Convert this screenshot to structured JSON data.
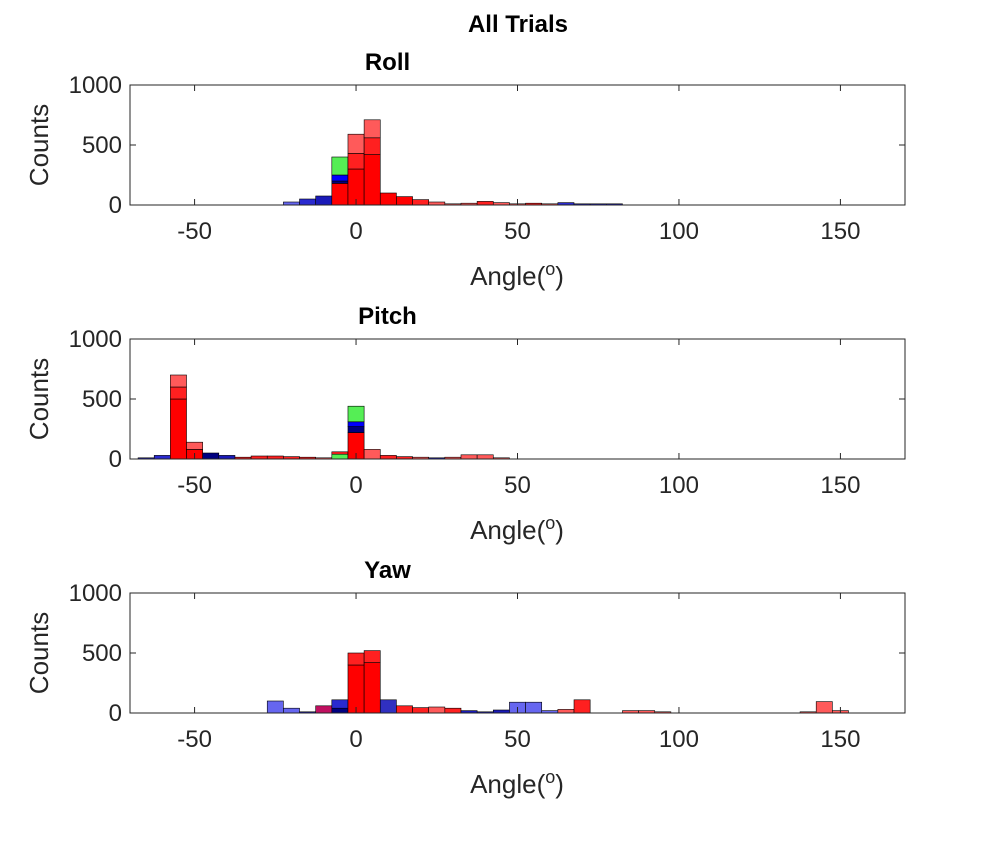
{
  "figure": {
    "title": "All Trials"
  },
  "chart_data": [
    {
      "type": "bar",
      "title": "Roll",
      "xlabel": "Angle(o)",
      "ylabel": "Counts",
      "xlim": [
        -70,
        170
      ],
      "ylim": [
        0,
        1000
      ],
      "xticks": [
        -50,
        0,
        50,
        100,
        150
      ],
      "yticks": [
        0,
        500,
        1000
      ],
      "bin_width": 5,
      "grid": false,
      "bins": [
        {
          "x": -20,
          "layers": [
            {
              "v": 25,
              "color": "#6666f0"
            }
          ]
        },
        {
          "x": -15,
          "layers": [
            {
              "v": 50,
              "color": "#2a2ad0"
            }
          ]
        },
        {
          "x": -10,
          "layers": [
            {
              "v": 75,
              "color": "#1a1ab8"
            }
          ]
        },
        {
          "x": -5,
          "layers": [
            {
              "v": 180,
              "color": "#ff0000"
            },
            {
              "v": 20,
              "color": "#000080"
            },
            {
              "v": 50,
              "color": "#0000ff"
            },
            {
              "v": 150,
              "color": "#55ee55"
            }
          ]
        },
        {
          "x": 0,
          "layers": [
            {
              "v": 300,
              "color": "#ff0000"
            },
            {
              "v": 130,
              "color": "#ff2020"
            },
            {
              "v": 160,
              "color": "#ff5a5a"
            }
          ]
        },
        {
          "x": 5,
          "layers": [
            {
              "v": 420,
              "color": "#ff0000"
            },
            {
              "v": 140,
              "color": "#ff2020"
            },
            {
              "v": 150,
              "color": "#ff5a5a"
            }
          ]
        },
        {
          "x": 10,
          "layers": [
            {
              "v": 100,
              "color": "#ff0000"
            }
          ]
        },
        {
          "x": 15,
          "layers": [
            {
              "v": 70,
              "color": "#ff0000"
            }
          ]
        },
        {
          "x": 20,
          "layers": [
            {
              "v": 45,
              "color": "#ff2020"
            }
          ]
        },
        {
          "x": 25,
          "layers": [
            {
              "v": 25,
              "color": "#ff5a5a"
            }
          ]
        },
        {
          "x": 30,
          "layers": [
            {
              "v": 10,
              "color": "#ff5a5a"
            }
          ]
        },
        {
          "x": 35,
          "layers": [
            {
              "v": 15,
              "color": "#ff5a5a"
            }
          ]
        },
        {
          "x": 40,
          "layers": [
            {
              "v": 30,
              "color": "#ff2020"
            }
          ]
        },
        {
          "x": 45,
          "layers": [
            {
              "v": 20,
              "color": "#ff5a5a"
            }
          ]
        },
        {
          "x": 50,
          "layers": [
            {
              "v": 10,
              "color": "#ff5a5a"
            }
          ]
        },
        {
          "x": 55,
          "layers": [
            {
              "v": 15,
              "color": "#ff2020"
            }
          ]
        },
        {
          "x": 60,
          "layers": [
            {
              "v": 10,
              "color": "#ff5a5a"
            }
          ]
        },
        {
          "x": 65,
          "layers": [
            {
              "v": 20,
              "color": "#2a2ad0"
            }
          ]
        },
        {
          "x": 70,
          "layers": [
            {
              "v": 10,
              "color": "#1a1ab8"
            }
          ]
        },
        {
          "x": 75,
          "layers": [
            {
              "v": 10,
              "color": "#1a1ab8"
            }
          ]
        },
        {
          "x": 80,
          "layers": [
            {
              "v": 10,
              "color": "#1a1ab8"
            }
          ]
        }
      ]
    },
    {
      "type": "bar",
      "title": "Pitch",
      "xlabel": "Angle(o)",
      "ylabel": "Counts",
      "xlim": [
        -70,
        170
      ],
      "ylim": [
        0,
        1000
      ],
      "xticks": [
        -50,
        0,
        50,
        100,
        150
      ],
      "yticks": [
        0,
        500,
        1000
      ],
      "bin_width": 5,
      "grid": false,
      "bins": [
        {
          "x": -65,
          "layers": [
            {
              "v": 10,
              "color": "#1a1ab8"
            }
          ]
        },
        {
          "x": -60,
          "layers": [
            {
              "v": 30,
              "color": "#2a2ad0"
            }
          ]
        },
        {
          "x": -55,
          "layers": [
            {
              "v": 500,
              "color": "#ff0000"
            },
            {
              "v": 100,
              "color": "#ff2020"
            },
            {
              "v": 100,
              "color": "#ff5a5a"
            }
          ]
        },
        {
          "x": -50,
          "layers": [
            {
              "v": 80,
              "color": "#ff0000"
            },
            {
              "v": 60,
              "color": "#ff5a5a"
            }
          ]
        },
        {
          "x": -45,
          "layers": [
            {
              "v": 50,
              "color": "#000080"
            }
          ]
        },
        {
          "x": -40,
          "layers": [
            {
              "v": 30,
              "color": "#1a1ab8"
            }
          ]
        },
        {
          "x": -35,
          "layers": [
            {
              "v": 15,
              "color": "#ff2020"
            }
          ]
        },
        {
          "x": -30,
          "layers": [
            {
              "v": 25,
              "color": "#ff2020"
            }
          ]
        },
        {
          "x": -25,
          "layers": [
            {
              "v": 25,
              "color": "#ff2020"
            }
          ]
        },
        {
          "x": -20,
          "layers": [
            {
              "v": 20,
              "color": "#ff2020"
            }
          ]
        },
        {
          "x": -15,
          "layers": [
            {
              "v": 15,
              "color": "#ff2020"
            }
          ]
        },
        {
          "x": -10,
          "layers": [
            {
              "v": 10,
              "color": "#ff5a5a"
            }
          ]
        },
        {
          "x": -5,
          "layers": [
            {
              "v": 40,
              "color": "#55ee55"
            },
            {
              "v": 20,
              "color": "#ff2020"
            }
          ]
        },
        {
          "x": 0,
          "layers": [
            {
              "v": 220,
              "color": "#ff0000"
            },
            {
              "v": 50,
              "color": "#000080"
            },
            {
              "v": 40,
              "color": "#0000ff"
            },
            {
              "v": 130,
              "color": "#55ee55"
            }
          ]
        },
        {
          "x": 5,
          "layers": [
            {
              "v": 80,
              "color": "#ff5a5a"
            }
          ]
        },
        {
          "x": 10,
          "layers": [
            {
              "v": 30,
              "color": "#ff2020"
            }
          ]
        },
        {
          "x": 15,
          "layers": [
            {
              "v": 20,
              "color": "#ff2020"
            }
          ]
        },
        {
          "x": 20,
          "layers": [
            {
              "v": 15,
              "color": "#ff5a5a"
            }
          ]
        },
        {
          "x": 25,
          "layers": [
            {
              "v": 10,
              "color": "#1a1ab8"
            }
          ]
        },
        {
          "x": 30,
          "layers": [
            {
              "v": 15,
              "color": "#ff5a5a"
            }
          ]
        },
        {
          "x": 35,
          "layers": [
            {
              "v": 35,
              "color": "#ff5a5a"
            }
          ]
        },
        {
          "x": 40,
          "layers": [
            {
              "v": 35,
              "color": "#ff5a5a"
            }
          ]
        },
        {
          "x": 45,
          "layers": [
            {
              "v": 10,
              "color": "#ff5a5a"
            }
          ]
        }
      ]
    },
    {
      "type": "bar",
      "title": "Yaw",
      "xlabel": "Angle(o)",
      "ylabel": "Counts",
      "xlim": [
        -70,
        170
      ],
      "ylim": [
        0,
        1000
      ],
      "xticks": [
        -50,
        0,
        50,
        100,
        150
      ],
      "yticks": [
        0,
        500,
        1000
      ],
      "bin_width": 5,
      "grid": false,
      "bins": [
        {
          "x": -25,
          "layers": [
            {
              "v": 100,
              "color": "#6666f0"
            }
          ]
        },
        {
          "x": -20,
          "layers": [
            {
              "v": 40,
              "color": "#6666f0"
            }
          ]
        },
        {
          "x": -15,
          "layers": [
            {
              "v": 10,
              "color": "#1a1ab8"
            }
          ]
        },
        {
          "x": -10,
          "layers": [
            {
              "v": 60,
              "color": "#c01060"
            }
          ]
        },
        {
          "x": -5,
          "layers": [
            {
              "v": 40,
              "color": "#000080"
            },
            {
              "v": 70,
              "color": "#2a2ad0"
            }
          ]
        },
        {
          "x": 0,
          "layers": [
            {
              "v": 400,
              "color": "#ff0000"
            },
            {
              "v": 100,
              "color": "#ff2020"
            }
          ]
        },
        {
          "x": 5,
          "layers": [
            {
              "v": 420,
              "color": "#ff0000"
            },
            {
              "v": 100,
              "color": "#ff2020"
            }
          ]
        },
        {
          "x": 10,
          "layers": [
            {
              "v": 110,
              "color": "#3030c0"
            }
          ]
        },
        {
          "x": 15,
          "layers": [
            {
              "v": 60,
              "color": "#ff2020"
            }
          ]
        },
        {
          "x": 20,
          "layers": [
            {
              "v": 45,
              "color": "#ff2020"
            }
          ]
        },
        {
          "x": 25,
          "layers": [
            {
              "v": 50,
              "color": "#ff5a5a"
            }
          ]
        },
        {
          "x": 30,
          "layers": [
            {
              "v": 40,
              "color": "#ff2020"
            }
          ]
        },
        {
          "x": 35,
          "layers": [
            {
              "v": 20,
              "color": "#1a1ab8"
            }
          ]
        },
        {
          "x": 40,
          "layers": [
            {
              "v": 10,
              "color": "#1a1ab8"
            }
          ]
        },
        {
          "x": 45,
          "layers": [
            {
              "v": 25,
              "color": "#1a1ab8"
            }
          ]
        },
        {
          "x": 50,
          "layers": [
            {
              "v": 90,
              "color": "#6666f0"
            }
          ]
        },
        {
          "x": 55,
          "layers": [
            {
              "v": 90,
              "color": "#6666f0"
            }
          ]
        },
        {
          "x": 60,
          "layers": [
            {
              "v": 20,
              "color": "#6666f0"
            }
          ]
        },
        {
          "x": 65,
          "layers": [
            {
              "v": 30,
              "color": "#ff5a5a"
            }
          ]
        },
        {
          "x": 70,
          "layers": [
            {
              "v": 110,
              "color": "#ff2020"
            }
          ]
        },
        {
          "x": 85,
          "layers": [
            {
              "v": 20,
              "color": "#ff5a5a"
            }
          ]
        },
        {
          "x": 90,
          "layers": [
            {
              "v": 20,
              "color": "#ff5a5a"
            }
          ]
        },
        {
          "x": 95,
          "layers": [
            {
              "v": 10,
              "color": "#ff5a5a"
            }
          ]
        },
        {
          "x": 140,
          "layers": [
            {
              "v": 10,
              "color": "#ff5a5a"
            }
          ]
        },
        {
          "x": 145,
          "layers": [
            {
              "v": 95,
              "color": "#ff5a5a"
            }
          ]
        },
        {
          "x": 150,
          "layers": [
            {
              "v": 20,
              "color": "#ff5a5a"
            }
          ]
        }
      ]
    }
  ]
}
